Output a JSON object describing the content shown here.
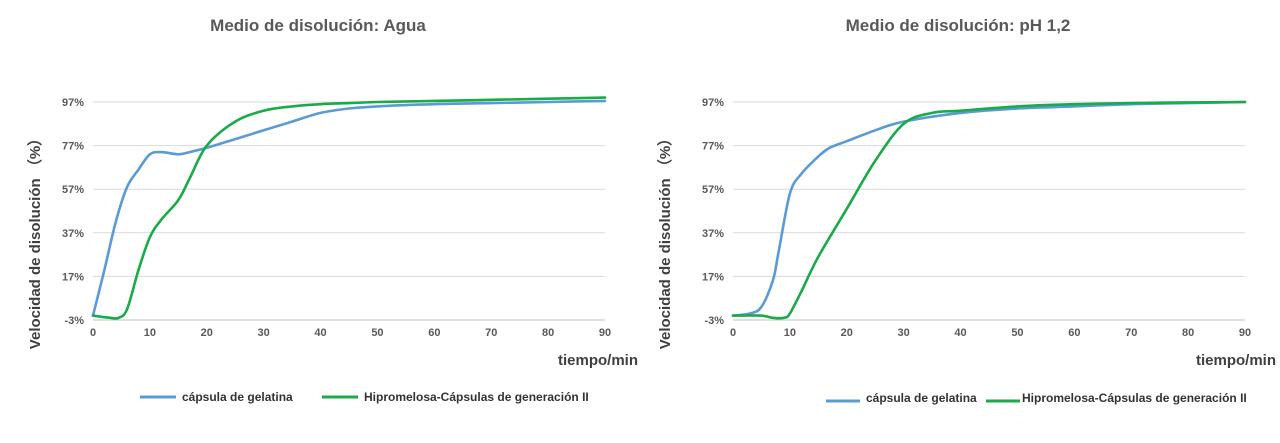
{
  "colors": {
    "gelatin": "#5b9bd5",
    "hpmc": "#1aaa4a",
    "grid": "#d9d9d9",
    "axis": "#bfbfbf"
  },
  "chart_data": [
    {
      "type": "line",
      "title": "Medio de disolución:  Agua",
      "xlabel": "tiempo/min",
      "ylabel": "Velocidad de disolución （%）",
      "xlim": [
        0,
        90
      ],
      "ylim": [
        -3,
        97
      ],
      "xticks": [
        "0",
        "10",
        "20",
        "30",
        "40",
        "50",
        "60",
        "70",
        "80",
        "90"
      ],
      "yticks": [
        "-3%",
        "17%",
        "37%",
        "57%",
        "77%",
        "97%"
      ],
      "legend_position": "bottom",
      "series": [
        {
          "name": "cápsula de gelatina",
          "color_key": "gelatin",
          "x": [
            0,
            2,
            4,
            6,
            8,
            10,
            12,
            15,
            17,
            20,
            25,
            30,
            35,
            40,
            45,
            50,
            60,
            70,
            80,
            90
          ],
          "y": [
            -1,
            20,
            42,
            58,
            66,
            73,
            74,
            73,
            74,
            76,
            80,
            84,
            88,
            92,
            94,
            95,
            96,
            96.5,
            97,
            97.5
          ]
        },
        {
          "name": "Hipromelosa-Cápsulas de generación II",
          "color_key": "hpmc",
          "x": [
            0,
            3,
            4.5,
            6,
            8,
            10,
            12,
            15,
            17,
            20,
            25,
            30,
            35,
            40,
            45,
            50,
            60,
            70,
            80,
            90
          ],
          "y": [
            -1,
            -2,
            -2,
            2,
            20,
            35,
            43,
            52,
            62,
            77,
            88,
            93,
            95,
            96,
            96.5,
            97,
            97.5,
            98,
            98.5,
            99
          ]
        }
      ]
    },
    {
      "type": "line",
      "title": "Medio de disolución:  pH 1,2",
      "xlabel": "tiempo/min",
      "ylabel": "Velocidad de disolución （%）",
      "xlim": [
        0,
        90
      ],
      "ylim": [
        -3,
        97
      ],
      "xticks": [
        "0",
        "10",
        "20",
        "30",
        "40",
        "50",
        "60",
        "70",
        "80",
        "90"
      ],
      "yticks": [
        "-3%",
        "17%",
        "37%",
        "57%",
        "77%",
        "97%"
      ],
      "legend_position": "bottom",
      "series": [
        {
          "name": "cápsula de gelatina",
          "color_key": "gelatin",
          "x": [
            0,
            3,
            5,
            7,
            8,
            10,
            12,
            15,
            17,
            20,
            25,
            30,
            40,
            50,
            60,
            70,
            80,
            90
          ],
          "y": [
            -1,
            0,
            3,
            15,
            28,
            55,
            64,
            72,
            76,
            79,
            84,
            88,
            92,
            94,
            95,
            96,
            96.5,
            97
          ]
        },
        {
          "name": "Hipromelosa-Cápsulas de generación II",
          "color_key": "hpmc",
          "x": [
            0,
            5,
            7,
            9,
            10,
            12,
            15,
            20,
            25,
            30,
            35,
            40,
            50,
            60,
            70,
            80,
            90
          ],
          "y": [
            -1,
            -1,
            -2,
            -2,
            0,
            10,
            26,
            48,
            70,
            87,
            92,
            93,
            95,
            96,
            96.5,
            96.8,
            97
          ]
        }
      ]
    }
  ]
}
